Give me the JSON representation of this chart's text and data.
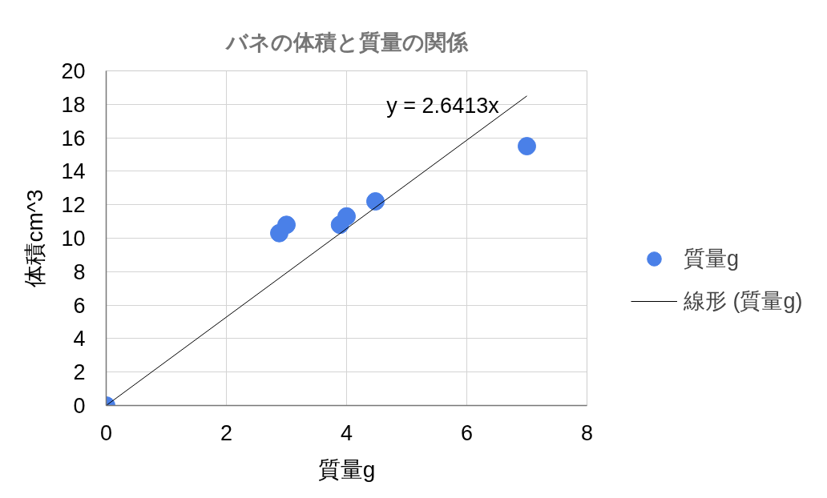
{
  "chart_data": {
    "type": "scatter",
    "title": "バネの体積と質量の関係",
    "xlabel": "質量g",
    "ylabel": "体積cm^3",
    "xlim": [
      0,
      8
    ],
    "ylim": [
      0,
      20
    ],
    "xticks": [
      0,
      2,
      4,
      6,
      8
    ],
    "yticks": [
      0,
      2,
      4,
      6,
      8,
      10,
      12,
      14,
      16,
      18,
      20
    ],
    "grid": true,
    "legend": "right",
    "marker": "circle",
    "series": [
      {
        "name": "質量g",
        "color": "#4a80e8",
        "x": [
          0,
          2.88,
          3.0,
          3.89,
          4.0,
          4.48,
          7.0
        ],
        "values": [
          0,
          10.3,
          10.8,
          10.8,
          11.3,
          12.2,
          15.5
        ]
      },
      {
        "type": "line",
        "name": "線形 (質量g)",
        "color": "#000000",
        "marker": "none",
        "x": [
          0,
          7
        ],
        "values": [
          0,
          18.5
        ]
      }
    ],
    "annotations": [
      "y = 2.6413x"
    ]
  }
}
